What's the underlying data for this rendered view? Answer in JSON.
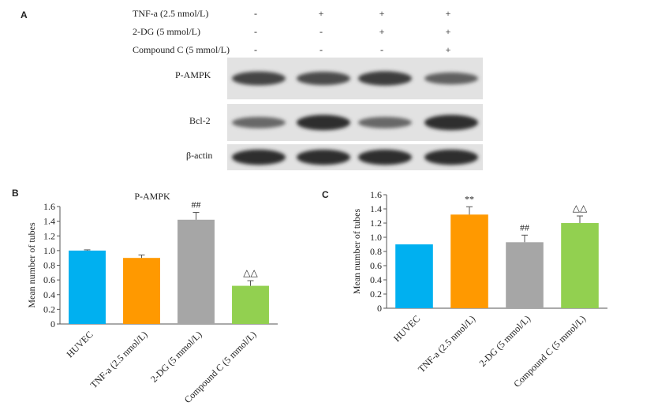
{
  "panelA": {
    "letter": "A",
    "conditions": [
      {
        "label": "TNF-a (2.5 nmol/L)",
        "signs": [
          "-",
          "+",
          "+",
          "+"
        ]
      },
      {
        "label": "2-DG (5 mmol/L)",
        "signs": [
          "-",
          "-",
          "+",
          "+"
        ]
      },
      {
        "label": "Compound C (5 mmol/L)",
        "signs": [
          "-",
          "-",
          "-",
          "+"
        ]
      }
    ],
    "blots": [
      {
        "label": "P-AMPK",
        "intensity": [
          0.8,
          0.75,
          0.85,
          0.6
        ]
      },
      {
        "label": "Bcl-2",
        "intensity": [
          0.55,
          0.95,
          0.55,
          0.95
        ]
      },
      {
        "label": "β-actin",
        "intensity": [
          0.95,
          0.95,
          0.95,
          0.95
        ]
      }
    ]
  },
  "chart_data": [
    {
      "panel": "B",
      "type": "bar",
      "title": "P-AMPK",
      "ylabel": "Mean number of tubes",
      "xlabel": "",
      "categories": [
        "HUVEC",
        "TNF-a (2.5 nmol/L)",
        "2-DG (5 mmol/L)",
        "Compound C (5 mmol/L)"
      ],
      "values": [
        1.0,
        0.9,
        1.42,
        0.52
      ],
      "errors": [
        0.01,
        0.04,
        0.1,
        0.07
      ],
      "annotations": [
        "",
        "",
        "##",
        "△△"
      ],
      "colors": [
        "#00b0f0",
        "#ff9900",
        "#a6a6a6",
        "#92d050"
      ],
      "ylim": [
        0,
        1.6
      ],
      "yticks": [
        "0",
        "0.2",
        "0.4",
        "0.6",
        "0.8",
        "1.0",
        "1.2",
        "1.4",
        "1.6"
      ],
      "grid": false,
      "legend": "none"
    },
    {
      "panel": "C",
      "type": "bar",
      "title": "",
      "ylabel": "Mean number of tubes",
      "xlabel": "",
      "categories": [
        "HUVEC",
        "TNF-a (2.5 nmol/L)",
        "2-DG (5 mmol/L)",
        "Compound C (5 mmol/L)"
      ],
      "values": [
        0.9,
        1.32,
        0.93,
        1.2
      ],
      "errors": [
        0.0,
        0.11,
        0.1,
        0.1
      ],
      "annotations": [
        "",
        "**",
        "##",
        "△△"
      ],
      "colors": [
        "#00b0f0",
        "#ff9900",
        "#a6a6a6",
        "#92d050"
      ],
      "ylim": [
        0,
        1.6
      ],
      "yticks": [
        "0",
        "0.2",
        "0.4",
        "0.6",
        "0.8",
        "1.0",
        "1.2",
        "1.4",
        "1.6"
      ],
      "grid": false,
      "legend": "none"
    }
  ]
}
